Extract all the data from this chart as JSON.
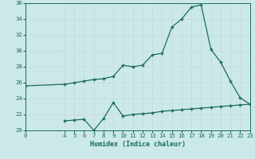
{
  "xlabel": "Humidex (Indice chaleur)",
  "bg_color": "#cce9e9",
  "line_color": "#1a6b5e",
  "grid_color": "#b8d8d8",
  "series1_x": [
    0,
    4,
    5,
    6,
    7,
    8,
    9,
    10,
    11,
    12,
    13,
    14,
    15,
    16,
    17,
    18,
    19,
    20,
    21,
    22,
    23
  ],
  "series1_y": [
    25.6,
    25.8,
    26.0,
    26.2,
    26.4,
    26.5,
    26.8,
    28.2,
    28.0,
    28.2,
    29.5,
    29.7,
    33.0,
    34.0,
    35.5,
    35.8,
    30.2,
    28.6,
    26.2,
    24.1,
    23.3
  ],
  "series2_x": [
    4,
    5,
    6,
    7,
    8,
    9,
    10,
    11,
    12,
    13,
    14,
    15,
    16,
    17,
    18,
    19,
    20,
    21,
    22,
    23
  ],
  "series2_y": [
    21.2,
    21.3,
    21.4,
    20.0,
    21.5,
    23.5,
    21.8,
    22.0,
    22.1,
    22.2,
    22.4,
    22.5,
    22.6,
    22.7,
    22.8,
    22.9,
    23.0,
    23.1,
    23.2,
    23.3
  ],
  "xlim": [
    0,
    23
  ],
  "ylim": [
    20,
    36
  ],
  "yticks": [
    20,
    22,
    24,
    26,
    28,
    30,
    32,
    34,
    36
  ],
  "xticks": [
    0,
    4,
    5,
    6,
    7,
    8,
    9,
    10,
    11,
    12,
    13,
    14,
    15,
    16,
    17,
    18,
    19,
    20,
    21,
    22,
    23
  ]
}
